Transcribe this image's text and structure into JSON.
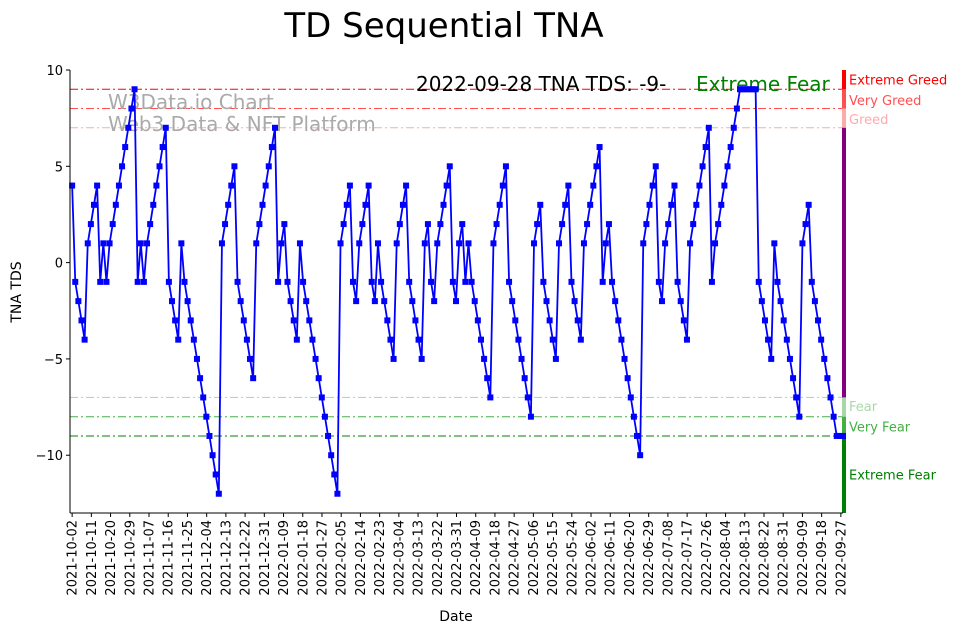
{
  "chart_data": {
    "type": "line",
    "title": "TD Sequential TNA",
    "xlabel": "Date",
    "ylabel": "TNA TDS",
    "ylim": [
      -13,
      10
    ],
    "xlim": [
      "2021-10-01",
      "2022-09-28"
    ],
    "yticks": [
      -10,
      -5,
      0,
      5,
      10
    ],
    "xticks": [
      "2021-10-02",
      "2021-10-11",
      "2021-10-20",
      "2021-10-29",
      "2021-11-07",
      "2021-11-16",
      "2021-11-25",
      "2021-12-04",
      "2021-12-13",
      "2021-12-22",
      "2021-12-31",
      "2022-01-09",
      "2022-01-18",
      "2022-01-27",
      "2022-02-05",
      "2022-02-14",
      "2022-02-23",
      "2022-03-04",
      "2022-03-13",
      "2022-03-22",
      "2022-03-31",
      "2022-04-09",
      "2022-04-18",
      "2022-04-27",
      "2022-05-06",
      "2022-05-15",
      "2022-05-24",
      "2022-06-02",
      "2022-06-11",
      "2022-06-20",
      "2022-06-29",
      "2022-07-08",
      "2022-07-17",
      "2022-07-26",
      "2022-08-04",
      "2022-08-13",
      "2022-08-22",
      "2022-08-31",
      "2022-09-09",
      "2022-09-18",
      "2022-09-27"
    ],
    "series": [
      {
        "name": "TNA TDS",
        "color": "#0000ff",
        "start_date": "2021-10-02",
        "end_date": "2022-09-28",
        "values": [
          4,
          -1,
          -2,
          -3,
          -4,
          1,
          2,
          3,
          4,
          -1,
          1,
          -1,
          1,
          2,
          3,
          4,
          5,
          6,
          7,
          8,
          9,
          -1,
          1,
          -1,
          1,
          2,
          3,
          4,
          5,
          6,
          7,
          -1,
          -2,
          -3,
          -4,
          1,
          -1,
          -2,
          -3,
          -4,
          -5,
          -6,
          -7,
          -8,
          -9,
          -10,
          -11,
          -12,
          1,
          2,
          3,
          4,
          5,
          -1,
          -2,
          -3,
          -4,
          -5,
          -6,
          1,
          2,
          3,
          4,
          5,
          6,
          7,
          -1,
          1,
          2,
          -1,
          -2,
          -3,
          -4,
          1,
          -1,
          -2,
          -3,
          -4,
          -5,
          -6,
          -7,
          -8,
          -9,
          -10,
          -11,
          -12,
          1,
          2,
          3,
          4,
          -1,
          -2,
          1,
          2,
          3,
          4,
          -1,
          -2,
          1,
          -1,
          -2,
          -3,
          -4,
          -5,
          1,
          2,
          3,
          4,
          -1,
          -2,
          -3,
          -4,
          -5,
          1,
          2,
          -1,
          -2,
          1,
          2,
          3,
          4,
          5,
          -1,
          -2,
          1,
          2,
          -1,
          1,
          -1,
          -2,
          -3,
          -4,
          -5,
          -6,
          -7,
          1,
          2,
          3,
          4,
          5,
          -1,
          -2,
          -3,
          -4,
          -5,
          -6,
          -7,
          -8,
          1,
          2,
          3,
          -1,
          -2,
          -3,
          -4,
          -5,
          1,
          2,
          3,
          4,
          -1,
          -2,
          -3,
          -4,
          1,
          2,
          3,
          4,
          5,
          6,
          -1,
          1,
          2,
          -1,
          -2,
          -3,
          -4,
          -5,
          -6,
          -7,
          -8,
          -9,
          -10,
          1,
          2,
          3,
          4,
          5,
          -1,
          -2,
          1,
          2,
          3,
          4,
          -1,
          -2,
          -3,
          -4,
          1,
          2,
          3,
          4,
          5,
          6,
          7,
          -1,
          1,
          2,
          3,
          4,
          5,
          6,
          7,
          8,
          9,
          9,
          9,
          9,
          9,
          9,
          -1,
          -2,
          -3,
          -4,
          -5,
          1,
          -1,
          -2,
          -3,
          -4,
          -5,
          -6,
          -7,
          -8,
          1,
          2,
          3,
          -1,
          -2,
          -3,
          -4,
          -5,
          -6,
          -7,
          -8,
          -9,
          -9,
          -9
        ]
      }
    ],
    "reference_lines": [
      {
        "value": 9,
        "color": "#ff0000"
      },
      {
        "value": 8,
        "color": "#ff5050"
      },
      {
        "value": 7,
        "color": "#ffaaaa"
      },
      {
        "value": -7,
        "color": "#a8d8a8"
      },
      {
        "value": -8,
        "color": "#44b044"
      },
      {
        "value": -9,
        "color": "#008000"
      }
    ],
    "zones": [
      {
        "label": "Extreme Greed",
        "from": 9,
        "to": 10,
        "color": "#ff0000",
        "label_value": 9.5
      },
      {
        "label": "Very Greed",
        "from": 8,
        "to": 9,
        "color": "#ff5050",
        "label_value": 8.45
      },
      {
        "label": "Greed",
        "from": 7,
        "to": 8,
        "color": "#ffaaaa",
        "label_value": 7.45
      },
      {
        "label": "",
        "from": -7,
        "to": 7,
        "color": "#800080"
      },
      {
        "label": "Fear",
        "from": -8,
        "to": -7,
        "color": "#a8d8a8",
        "label_value": -7.45
      },
      {
        "label": "Very Fear",
        "from": -9,
        "to": -8,
        "color": "#44b044",
        "label_value": -8.5
      },
      {
        "label": "Extreme Fear",
        "from": -13,
        "to": -9,
        "color": "#008000",
        "label_value": -11
      }
    ],
    "annotation": {
      "prefix": "2022-09-28 TNA TDS: -9-",
      "status": "Extreme Fear",
      "status_color": "#008000"
    },
    "watermark": {
      "line1": "W3Data.io Chart",
      "line2": "Web3 Data & NFT Platform"
    }
  }
}
